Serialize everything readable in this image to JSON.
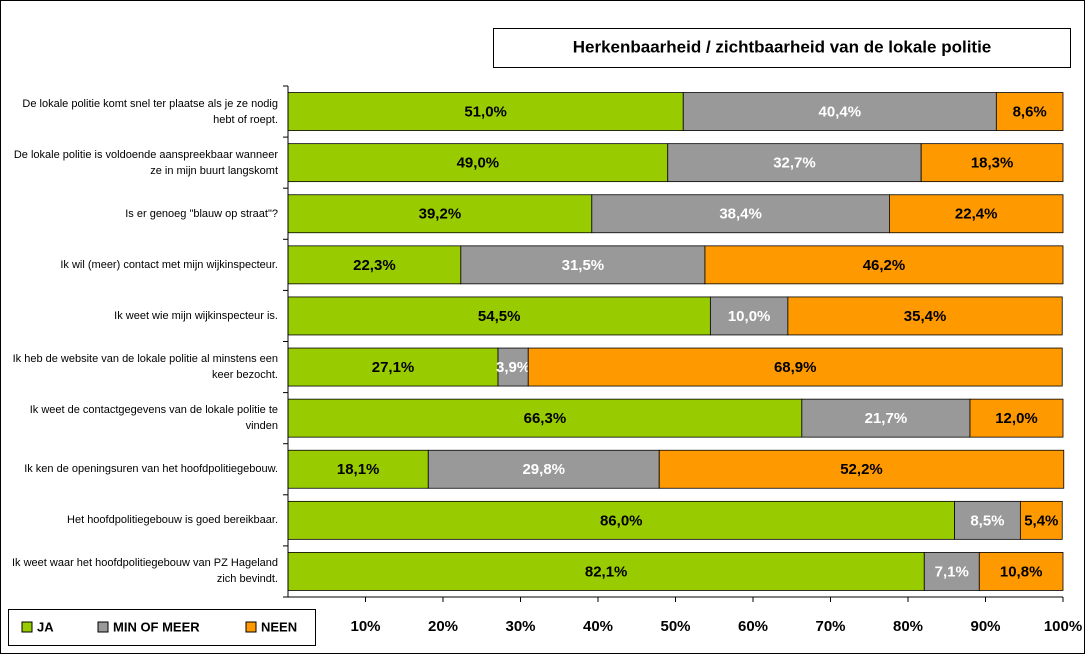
{
  "chart_data": {
    "type": "stacked-barh",
    "title": "Herkenbaarheid / zichtbaarheid van de lokale politie",
    "categories": [
      "De lokale politie komt snel ter plaatse als je ze nodig hebt of roept.",
      "De lokale politie is voldoende aanspreekbaar wanneer ze in mijn buurt langskomt",
      "Is er genoeg \"blauw op straat\"?",
      "Ik wil (meer) contact met mijn wijkinspecteur.",
      "Ik weet wie mijn wijkinspecteur is.",
      "Ik heb de website van de lokale politie al minstens een keer bezocht.",
      "Ik weet de contactgegevens van de lokale politie te vinden",
      "Ik ken de openingsuren van het hoofdpolitiegebouw.",
      "Het hoofdpolitiegebouw is goed bereikbaar.",
      "Ik weet waar het hoofdpolitiegebouw van PZ Hageland zich bevindt."
    ],
    "series": [
      {
        "name": "JA",
        "color": "#99cc00",
        "values": [
          51.0,
          49.0,
          39.2,
          22.3,
          54.5,
          27.1,
          66.3,
          18.1,
          86.0,
          82.1
        ],
        "value_labels": [
          "51,0%",
          "49,0%",
          "39,2%",
          "22,3%",
          "54,5%",
          "27,1%",
          "66,3%",
          "18,1%",
          "86,0%",
          "82,1%"
        ]
      },
      {
        "name": "MIN OF MEER",
        "color": "#999999",
        "values": [
          40.4,
          32.7,
          38.4,
          31.5,
          10.0,
          3.9,
          21.7,
          29.8,
          8.5,
          7.1
        ],
        "value_labels": [
          "40,4%",
          "32,7%",
          "38,4%",
          "31,5%",
          "10,0%",
          "3,9%",
          "21,7%",
          "29,8%",
          "8,5%",
          "7,1%"
        ]
      },
      {
        "name": "NEEN",
        "color": "#ff9900",
        "values": [
          8.6,
          18.3,
          22.4,
          46.2,
          35.4,
          68.9,
          12.0,
          52.2,
          5.4,
          10.8
        ],
        "value_labels": [
          "8,6%",
          "18,3%",
          "22,4%",
          "46,2%",
          "35,4%",
          "68,9%",
          "12,0%",
          "52,2%",
          "5,4%",
          "10,8%"
        ]
      }
    ],
    "xlim": [
      0,
      100
    ],
    "xticks": [
      {
        "value": 10,
        "label": "10%"
      },
      {
        "value": 20,
        "label": "20%"
      },
      {
        "value": 30,
        "label": "30%"
      },
      {
        "value": 40,
        "label": "40%"
      },
      {
        "value": 50,
        "label": "50%"
      },
      {
        "value": 60,
        "label": "60%"
      },
      {
        "value": 70,
        "label": "70%"
      },
      {
        "value": 80,
        "label": "80%"
      },
      {
        "value": 90,
        "label": "90%"
      },
      {
        "value": 100,
        "label": "100%"
      }
    ],
    "legend": "bottom-left"
  }
}
